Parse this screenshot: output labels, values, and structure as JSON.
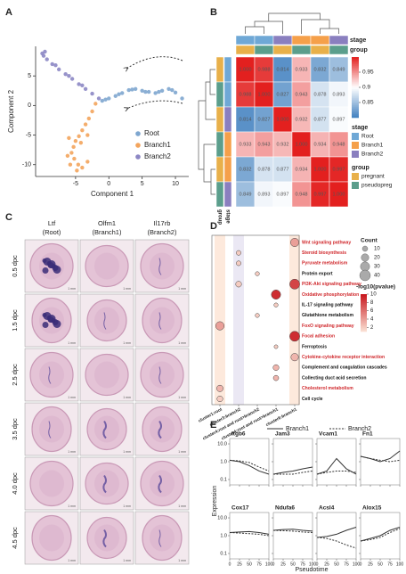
{
  "chart_data": [
    {
      "panel": "A",
      "type": "scatter",
      "xlabel": "Component 1",
      "ylabel": "Component 2",
      "xlim": [
        -11,
        12
      ],
      "ylim": [
        -12,
        10
      ],
      "xticks": [
        -5,
        0,
        5,
        10
      ],
      "yticks": [
        -10,
        -5,
        0,
        5
      ],
      "legend": "right",
      "series": [
        {
          "name": "Root",
          "color": "#7ea6cf",
          "x": [
            -1,
            -0.5,
            0,
            1,
            2,
            3,
            4,
            5,
            6,
            7,
            8,
            9,
            10,
            11,
            1.5,
            3.5,
            5.5,
            7.5,
            9.5
          ],
          "y": [
            0.8,
            1,
            1.2,
            1.6,
            2.1,
            2.6,
            2.8,
            2.5,
            2.3,
            2.1,
            2.5,
            2.8,
            2.2,
            1.2,
            1.9,
            2.7,
            2.3,
            2.3,
            2.6
          ]
        },
        {
          "name": "Branch1",
          "color": "#f3a45c",
          "x": [
            -2,
            -2.5,
            -3,
            -3.5,
            -4,
            -4.5,
            -5,
            -5.3,
            -5.6,
            -5.2,
            -4.6,
            -4,
            -3.2,
            -6,
            -4.2,
            -3.2,
            -6.2,
            -5.8,
            -4.8
          ],
          "y": [
            0.3,
            -1,
            -2.2,
            -3.2,
            -4.2,
            -5.2,
            -6,
            -7,
            -8,
            -9,
            -10,
            -10.5,
            -9.5,
            -5.5,
            -6.3,
            -5,
            -8.5,
            -10,
            -11
          ]
        },
        {
          "name": "Branch2",
          "color": "#8c87c4",
          "x": [
            -1.5,
            -2.5,
            -3.5,
            -4.5,
            -5.5,
            -6.5,
            -7.5,
            -8.5,
            -9.3,
            -9.8,
            -10,
            -9.6,
            -8,
            -6,
            -4
          ],
          "y": [
            1.2,
            2,
            2.8,
            3.6,
            4.5,
            5.3,
            6.1,
            7,
            7.8,
            8.4,
            8.8,
            9.1,
            6.8,
            5,
            3.4
          ]
        }
      ]
    },
    {
      "panel": "B",
      "type": "heatmap",
      "matrix": [
        [
          1.0,
          0.988,
          0.814,
          0.933,
          0.832,
          0.849
        ],
        [
          0.988,
          1.0,
          0.827,
          0.943,
          0.878,
          0.893
        ],
        [
          0.814,
          0.827,
          1.0,
          0.932,
          0.877,
          0.897
        ],
        [
          0.933,
          0.943,
          0.932,
          1.0,
          0.934,
          0.948
        ],
        [
          0.832,
          0.878,
          0.877,
          0.934,
          1.0,
          0.997
        ],
        [
          0.849,
          0.893,
          0.897,
          0.948,
          0.997,
          1.0
        ]
      ],
      "value_labels": [
        [
          "1.000",
          "0.988",
          "0.814",
          "0.933",
          "0.832",
          "0.849"
        ],
        [
          "0.988",
          "1.000",
          "0.827",
          "0.943",
          "0.878",
          "0.893"
        ],
        [
          "0.814",
          "0.827",
          "1.000",
          "0.932",
          "0.877",
          "0.897"
        ],
        [
          "0.933",
          "0.943",
          "0.932",
          "1.000",
          "0.934",
          "0.948"
        ],
        [
          "0.832",
          "0.878",
          "0.877",
          "0.934",
          "1.000",
          "0.997"
        ],
        [
          "0.849",
          "0.893",
          "0.897",
          "0.948",
          "0.997",
          "1.000"
        ]
      ],
      "clim": [
        0.8,
        1.0
      ],
      "cticks": [
        0.85,
        0.9,
        0.95
      ],
      "colors": [
        "#3f7fbf",
        "#ffffff",
        "#e3201f"
      ],
      "annotations": [
        {
          "name": "stage",
          "levels": [
            {
              "name": "Root",
              "color": "#6fa8d6"
            },
            {
              "name": "Branch1",
              "color": "#f5a04a"
            },
            {
              "name": "Branch2",
              "color": "#8a7fbf"
            }
          ],
          "values": [
            "Root",
            "Root",
            "Branch2",
            "Branch1",
            "Branch1",
            "Branch2"
          ]
        },
        {
          "name": "group",
          "levels": [
            {
              "name": "pregnant",
              "color": "#e8b04a"
            },
            {
              "name": "pseudopreg",
              "color": "#5b9e8c"
            }
          ],
          "values": [
            "pregnant",
            "pseudopreg",
            "pregnant",
            "pseudopreg",
            "pregnant",
            "pseudopreg"
          ]
        }
      ]
    },
    {
      "panel": "D",
      "type": "dot",
      "pathways": [
        "Wnt signaling pathway",
        "Steroid biosynthesis",
        "Pyruvate metabolism",
        "Protein export",
        "PI3K-Akt signaling pathway",
        "Oxidative phosphorylation",
        "IL-17 signaling pathway",
        "Glutathione metabolism",
        "FoxO signaling pathway",
        "Focal adhesion",
        "Ferroptosis",
        "Cytokine-cytokine receptor interaction",
        "Complement and coagulation cascades",
        "Collecting duct acid secretion",
        "Cholesterol metabolism",
        "Cell cycle"
      ],
      "highlight": [
        true,
        true,
        true,
        false,
        true,
        true,
        false,
        false,
        true,
        true,
        false,
        true,
        false,
        false,
        true,
        false
      ],
      "highlight_color": "#d0282c",
      "clusters": [
        "cluster1:root",
        "cluster3:branch2",
        "cluster4:root and root>branch2",
        "cluster4:root and root>branch1",
        "cluster6:branch1"
      ],
      "points": {
        "pathway": [
          0,
          1,
          2,
          3,
          4,
          4,
          5,
          6,
          7,
          8,
          9,
          10,
          11,
          12,
          13,
          14,
          15
        ],
        "cluster": [
          4,
          1,
          1,
          2,
          1,
          4,
          3,
          3,
          2,
          0,
          4,
          3,
          4,
          3,
          3,
          0,
          0
        ],
        "count": [
          25,
          8,
          8,
          6,
          12,
          35,
          30,
          6,
          6,
          25,
          35,
          5,
          20,
          12,
          10,
          15,
          12
        ],
        "logp": [
          4,
          2,
          2,
          2,
          2,
          8,
          9,
          2,
          2,
          4,
          9,
          2,
          3,
          3,
          3,
          3,
          2
        ]
      },
      "size_title": "Count",
      "sizes": [
        10,
        20,
        30,
        40
      ],
      "color_title": "-log10(pvalue)",
      "clim": [
        1,
        10
      ],
      "cticks": [
        2,
        4,
        6,
        8,
        10
      ],
      "colors": [
        "#fbe3d6",
        "#c8161d"
      ]
    },
    {
      "panel": "E",
      "type": "line",
      "xlabel": "Pseudotime",
      "ylabel": "Expression",
      "x": [
        0,
        25,
        50,
        75,
        100
      ],
      "xlim": [
        0,
        100
      ],
      "xticks": [
        0,
        25,
        50,
        75,
        100
      ],
      "log_y": true,
      "ylim": [
        0.05,
        20
      ],
      "yticks": [
        0.1,
        {
          "value": 1,
          "label": "1.0"
        },
        {
          "value": 10,
          "label": "10.0"
        }
      ],
      "series": [
        {
          "name": "Branch1",
          "style": "solid",
          "color": "#333333"
        },
        {
          "name": "Branch2",
          "style": "dashed",
          "color": "#333333"
        }
      ],
      "subplots": [
        {
          "title": "Itgb6",
          "values": [
            [
              1.2,
              1.0,
              0.6,
              0.3,
              0.2
            ],
            [
              1.2,
              1.1,
              0.9,
              0.5,
              0.3
            ]
          ]
        },
        {
          "title": "Jam3",
          "values": [
            [
              0.2,
              0.25,
              0.3,
              0.4,
              0.5
            ],
            [
              0.2,
              0.2,
              0.2,
              0.25,
              0.3
            ]
          ]
        },
        {
          "title": "Vcam1",
          "values": [
            [
              0.2,
              0.3,
              1.5,
              0.4,
              0.2
            ],
            [
              0.2,
              0.25,
              0.3,
              0.3,
              0.25
            ]
          ]
        },
        {
          "title": "Fn1",
          "values": [
            [
              2,
              1.5,
              1,
              1.5,
              4
            ],
            [
              2,
              1.5,
              1.2,
              1,
              1.2
            ]
          ]
        },
        {
          "title": "Cox17",
          "values": [
            [
              1.5,
              1.6,
              1.7,
              1.5,
              1.2
            ],
            [
              1.5,
              1.4,
              1.3,
              1.2,
              1.0
            ]
          ]
        },
        {
          "title": "Ndufa6",
          "values": [
            [
              2,
              2.2,
              2.3,
              2,
              1.8
            ],
            [
              2,
              1.9,
              1.8,
              1.6,
              1.5
            ]
          ]
        },
        {
          "title": "Acsl4",
          "values": [
            [
              0.8,
              0.9,
              1.2,
              2,
              3
            ],
            [
              0.8,
              0.7,
              0.5,
              0.3,
              0.2
            ]
          ]
        },
        {
          "title": "Alox15",
          "values": [
            [
              0.5,
              0.7,
              1,
              2,
              3
            ],
            [
              0.5,
              0.6,
              0.8,
              1.5,
              2.5
            ]
          ]
        }
      ]
    }
  ],
  "panel_C": {
    "panel": "C",
    "columns": [
      {
        "gene": "Ltf",
        "branch": "(Root)"
      },
      {
        "gene": "Olfm1",
        "branch": "(Branch1)"
      },
      {
        "gene": "Il17rb",
        "branch": "(Branch2)"
      }
    ],
    "rows": [
      "0.5 dpc",
      "1.5 dpc",
      "2.5 dpc",
      "3.5 dpc",
      "4.0 dpc",
      "4.5 dpc"
    ],
    "scale_bar": "1 mm"
  }
}
